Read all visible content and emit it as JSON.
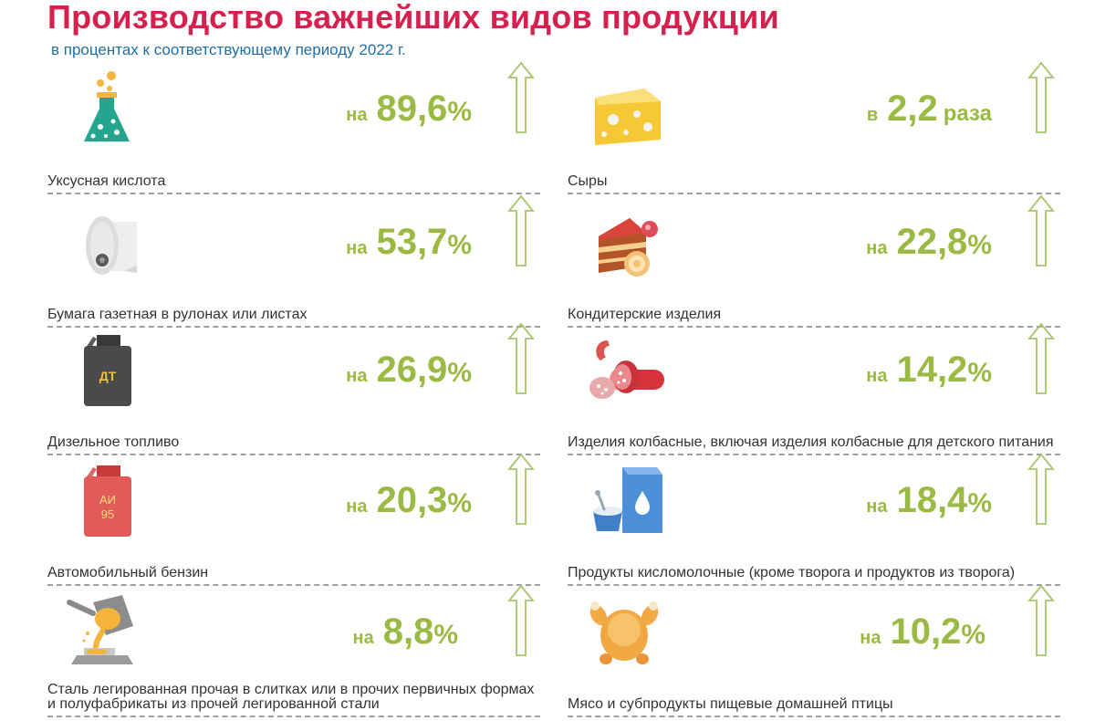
{
  "header": {
    "title": "Производство важнейших видов продукции",
    "subtitle": "в процентах к соответствующему периоду 2022 г."
  },
  "items": [
    {
      "label": "Уксусная кислота",
      "prefix": "на",
      "value": "89,6",
      "suffix": "%",
      "icon": "flask-icon"
    },
    {
      "label": "Сыры",
      "prefix": "в",
      "value": "2,2",
      "suffix": "раза",
      "icon": "cheese-icon"
    },
    {
      "label": "Бумага газетная в рулонах или листах",
      "prefix": "на",
      "value": "53,7",
      "suffix": "%",
      "icon": "paper-roll-icon"
    },
    {
      "label": "Кондитерские изделия",
      "prefix": "на",
      "value": "22,8",
      "suffix": "%",
      "icon": "cake-icon"
    },
    {
      "label": "Дизельное топливо",
      "prefix": "на",
      "value": "26,9",
      "suffix": "%",
      "icon": "diesel-canister-icon",
      "icon_text": "ДТ"
    },
    {
      "label": "Изделия колбасные, включая   изделия колбасные для детского питания",
      "prefix": "на",
      "value": "14,2",
      "suffix": "%",
      "icon": "sausage-icon"
    },
    {
      "label": "Автомобильный бензин",
      "prefix": "на",
      "value": "20,3",
      "suffix": "%",
      "icon": "gasoline-canister-icon",
      "icon_text_1": "АИ",
      "icon_text_2": "95"
    },
    {
      "label": "Продукты кисломолочные (кроме творога и продуктов из творога)",
      "prefix": "на",
      "value": "18,4",
      "suffix": "%",
      "icon": "milk-carton-icon"
    },
    {
      "label": "Сталь легированная прочая в слитках  или  в прочих первичных формах и полуфабрикаты из прочей легированной стали",
      "prefix": "на",
      "value": "8,8",
      "suffix": "%",
      "icon": "steel-ladle-icon"
    },
    {
      "label": "Мясо и субпродукты пищевые домашней птицы",
      "prefix": "на",
      "value": "10,2",
      "suffix": "%",
      "icon": "poultry-icon"
    }
  ],
  "colors": {
    "title": "#d6204e",
    "subtitle": "#1f6fa3",
    "value": "#9bba43",
    "arrow": "#a8c46a",
    "rule": "#9e9e9e"
  }
}
